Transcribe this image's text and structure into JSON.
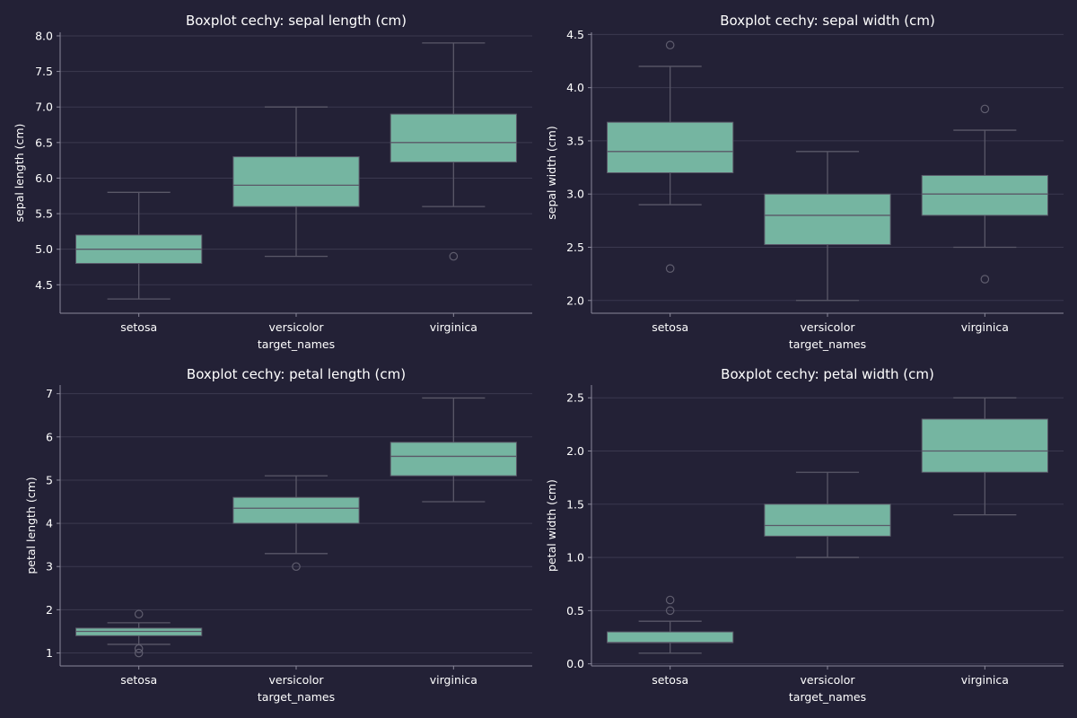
{
  "colors": {
    "background": "#232136",
    "box_fill": "#75b5a1",
    "line": "#5a5868",
    "grid": "#3b394f",
    "text": "#ffffff"
  },
  "chart_data": [
    {
      "type": "box",
      "title": "Boxplot cechy: sepal length (cm)",
      "xlabel": "target_names",
      "ylabel": "sepal length (cm)",
      "ylim": [
        4.1,
        8.05
      ],
      "yticks": [
        4.5,
        5.0,
        5.5,
        6.0,
        6.5,
        7.0,
        7.5,
        8.0
      ],
      "ytick_labels": [
        "4.5",
        "5.0",
        "5.5",
        "6.0",
        "6.5",
        "7.0",
        "7.5",
        "8.0"
      ],
      "categories": [
        "setosa",
        "versicolor",
        "virginica"
      ],
      "boxes": [
        {
          "whislo": 4.3,
          "q1": 4.8,
          "med": 5.0,
          "q3": 5.2,
          "whishi": 5.8,
          "fliers": []
        },
        {
          "whislo": 4.9,
          "q1": 5.6,
          "med": 5.9,
          "q3": 6.3,
          "whishi": 7.0,
          "fliers": []
        },
        {
          "whislo": 5.6,
          "q1": 6.225,
          "med": 6.5,
          "q3": 6.9,
          "whishi": 7.9,
          "fliers": [
            4.9
          ]
        }
      ],
      "grid": true
    },
    {
      "type": "box",
      "title": "Boxplot cechy: sepal width (cm)",
      "xlabel": "target_names",
      "ylabel": "sepal width (cm)",
      "ylim": [
        1.88,
        4.52
      ],
      "yticks": [
        2.0,
        2.5,
        3.0,
        3.5,
        4.0,
        4.5
      ],
      "ytick_labels": [
        "2.0",
        "2.5",
        "3.0",
        "3.5",
        "4.0",
        "4.5"
      ],
      "categories": [
        "setosa",
        "versicolor",
        "virginica"
      ],
      "boxes": [
        {
          "whislo": 2.9,
          "q1": 3.2,
          "med": 3.4,
          "q3": 3.675,
          "whishi": 4.2,
          "fliers": [
            4.4,
            2.3
          ]
        },
        {
          "whislo": 2.0,
          "q1": 2.525,
          "med": 2.8,
          "q3": 3.0,
          "whishi": 3.4,
          "fliers": []
        },
        {
          "whislo": 2.5,
          "q1": 2.8,
          "med": 3.0,
          "q3": 3.175,
          "whishi": 3.6,
          "fliers": [
            3.8,
            2.2
          ]
        }
      ],
      "grid": true
    },
    {
      "type": "box",
      "title": "Boxplot cechy: petal length (cm)",
      "xlabel": "target_names",
      "ylabel": "petal length (cm)",
      "ylim": [
        0.7,
        7.2
      ],
      "yticks": [
        1,
        2,
        3,
        4,
        5,
        6,
        7
      ],
      "ytick_labels": [
        "1",
        "2",
        "3",
        "4",
        "5",
        "6",
        "7"
      ],
      "categories": [
        "setosa",
        "versicolor",
        "virginica"
      ],
      "boxes": [
        {
          "whislo": 1.2,
          "q1": 1.4,
          "med": 1.5,
          "q3": 1.575,
          "whishi": 1.7,
          "fliers": [
            1.9,
            1.1,
            1.0
          ]
        },
        {
          "whislo": 3.3,
          "q1": 4.0,
          "med": 4.35,
          "q3": 4.6,
          "whishi": 5.1,
          "fliers": [
            3.0
          ]
        },
        {
          "whislo": 4.5,
          "q1": 5.1,
          "med": 5.55,
          "q3": 5.875,
          "whishi": 6.9,
          "fliers": []
        }
      ],
      "grid": true
    },
    {
      "type": "box",
      "title": "Boxplot cechy: petal width (cm)",
      "xlabel": "target_names",
      "ylabel": "petal width (cm)",
      "ylim": [
        -0.02,
        2.62
      ],
      "yticks": [
        0.0,
        0.5,
        1.0,
        1.5,
        2.0,
        2.5
      ],
      "ytick_labels": [
        "0.0",
        "0.5",
        "1.0",
        "1.5",
        "2.0",
        "2.5"
      ],
      "categories": [
        "setosa",
        "versicolor",
        "virginica"
      ],
      "boxes": [
        {
          "whislo": 0.1,
          "q1": 0.2,
          "med": 0.2,
          "q3": 0.3,
          "whishi": 0.4,
          "fliers": [
            0.6,
            0.5
          ]
        },
        {
          "whislo": 1.0,
          "q1": 1.2,
          "med": 1.3,
          "q3": 1.5,
          "whishi": 1.8,
          "fliers": []
        },
        {
          "whislo": 1.4,
          "q1": 1.8,
          "med": 2.0,
          "q3": 2.3,
          "whishi": 2.5,
          "fliers": []
        }
      ],
      "grid": true
    }
  ]
}
